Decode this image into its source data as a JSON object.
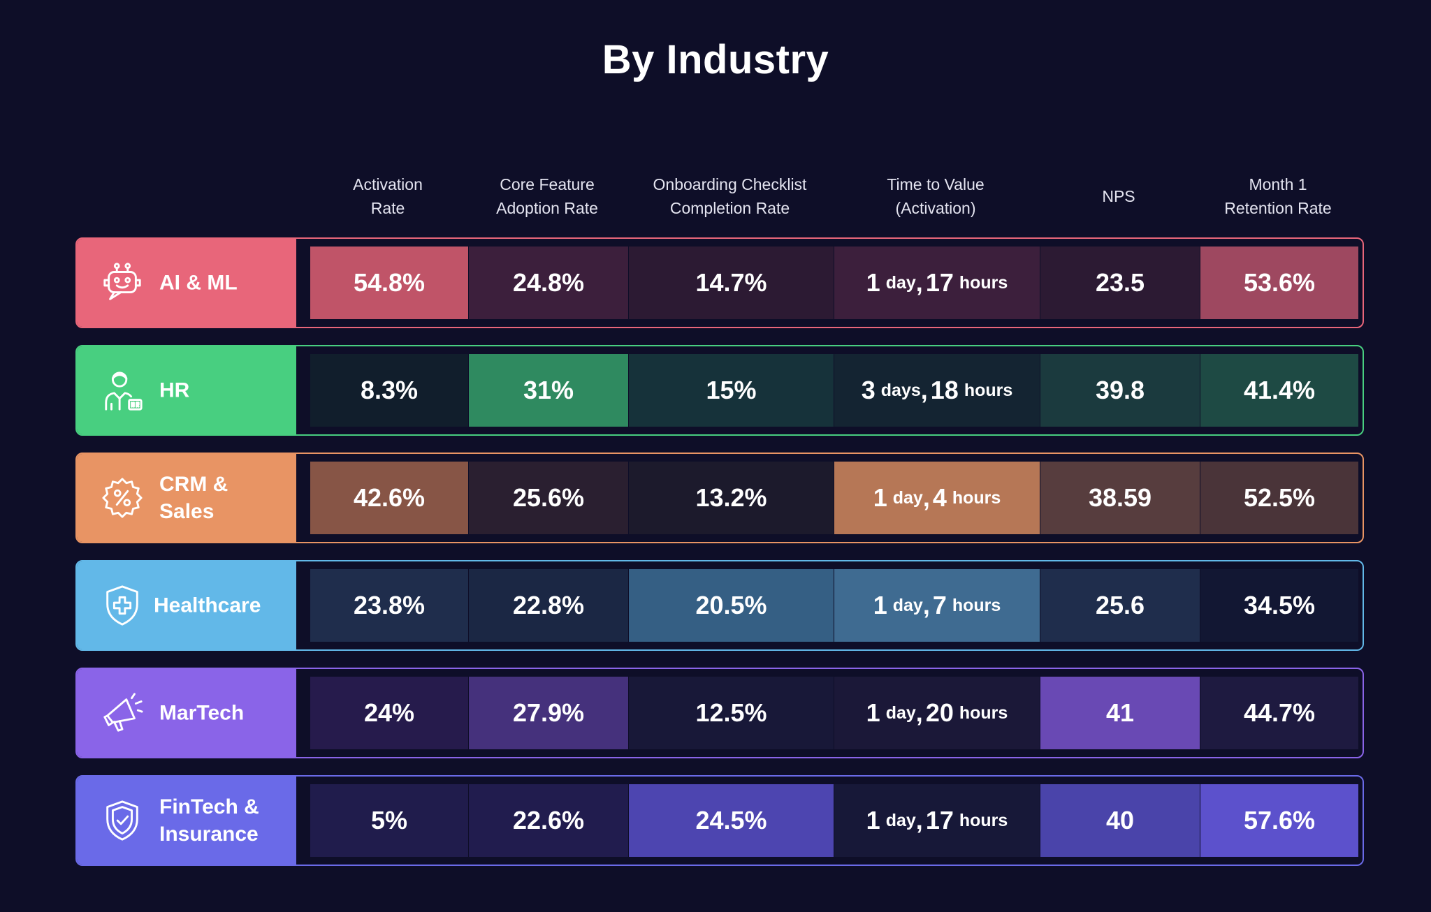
{
  "title": "By Industry",
  "chart_data": {
    "type": "table",
    "title": "By Industry",
    "columns": [
      "Activation\nRate",
      "Core Feature\nAdoption Rate",
      "Onboarding Checklist\nCompletion Rate",
      "Time to Value\n(Activation)",
      "NPS",
      "Month 1\nRetention Rate"
    ],
    "rows": [
      {
        "name": "AI & ML",
        "icon": "robot-icon",
        "color": "#e8667a",
        "cells": [
          {
            "text": "54.8%",
            "bg": "#c05468"
          },
          {
            "text": "24.8%",
            "bg": "#3c1f3c"
          },
          {
            "text": "14.7%",
            "bg": "#2c1a33"
          },
          {
            "text": "1 day, 17 hours",
            "n1": "1",
            "u1": "day",
            "n2": "17",
            "u2": "hours",
            "bg": "#3c1f3c"
          },
          {
            "text": "23.5",
            "bg": "#2c1a33"
          },
          {
            "text": "53.6%",
            "bg": "#9e4860"
          }
        ]
      },
      {
        "name": "HR",
        "icon": "hr-person-icon",
        "color": "#48cf80",
        "cells": [
          {
            "text": "8.3%",
            "bg": "#111e2c"
          },
          {
            "text": "31%",
            "bg": "#2f8a60"
          },
          {
            "text": "15%",
            "bg": "#16323a"
          },
          {
            "text": "3 days, 18 hours",
            "n1": "3",
            "u1": "days",
            "n2": "18",
            "u2": "hours",
            "bg": "#142432"
          },
          {
            "text": "39.8",
            "bg": "#1b3a3e"
          },
          {
            "text": "41.4%",
            "bg": "#1e4a44"
          }
        ]
      },
      {
        "name": "CRM &\nSales",
        "icon": "percent-badge-icon",
        "color": "#e89464",
        "cells": [
          {
            "text": "42.6%",
            "bg": "#875546"
          },
          {
            "text": "25.6%",
            "bg": "#2a1f30"
          },
          {
            "text": "13.2%",
            "bg": "#1c1a2c"
          },
          {
            "text": "1 day, 4 hours",
            "n1": "1",
            "u1": "day",
            "n2": "4",
            "u2": "hours",
            "bg": "#b67756"
          },
          {
            "text": "38.59",
            "bg": "#573d3e"
          },
          {
            "text": "52.5%",
            "bg": "#4a3439"
          }
        ]
      },
      {
        "name": "Healthcare",
        "icon": "shield-plus-icon",
        "color": "#62b8e8",
        "cells": [
          {
            "text": "23.8%",
            "bg": "#1f2d4c"
          },
          {
            "text": "22.8%",
            "bg": "#1b2744"
          },
          {
            "text": "20.5%",
            "bg": "#355f84"
          },
          {
            "text": "1 day, 7 hours",
            "n1": "1",
            "u1": "day",
            "n2": "7",
            "u2": "hours",
            "bg": "#3f6b91"
          },
          {
            "text": "25.6",
            "bg": "#1f2d4c"
          },
          {
            "text": "34.5%",
            "bg": "#121733"
          }
        ]
      },
      {
        "name": "MarTech",
        "icon": "megaphone-icon",
        "color": "#8a64e8",
        "cells": [
          {
            "text": "24%",
            "bg": "#261b4c"
          },
          {
            "text": "27.9%",
            "bg": "#45317c"
          },
          {
            "text": "12.5%",
            "bg": "#181838"
          },
          {
            "text": "1 day, 20 hours",
            "n1": "1",
            "u1": "day",
            "n2": "20",
            "u2": "hours",
            "bg": "#1b1838"
          },
          {
            "text": "41",
            "bg": "#6949b4"
          },
          {
            "text": "44.7%",
            "bg": "#1e1a40"
          }
        ]
      },
      {
        "name": "FinTech &\nInsurance",
        "icon": "shield-check-icon",
        "color": "#6a6ae8",
        "cells": [
          {
            "text": "5%",
            "bg": "#201c4c"
          },
          {
            "text": "22.6%",
            "bg": "#211c4e"
          },
          {
            "text": "24.5%",
            "bg": "#4d45b0"
          },
          {
            "text": "1 day, 17 hours",
            "n1": "1",
            "u1": "day",
            "n2": "17",
            "u2": "hours",
            "bg": "#171838"
          },
          {
            "text": "40",
            "bg": "#4a44aa"
          },
          {
            "text": "57.6%",
            "bg": "#5c51cc"
          }
        ]
      }
    ]
  }
}
